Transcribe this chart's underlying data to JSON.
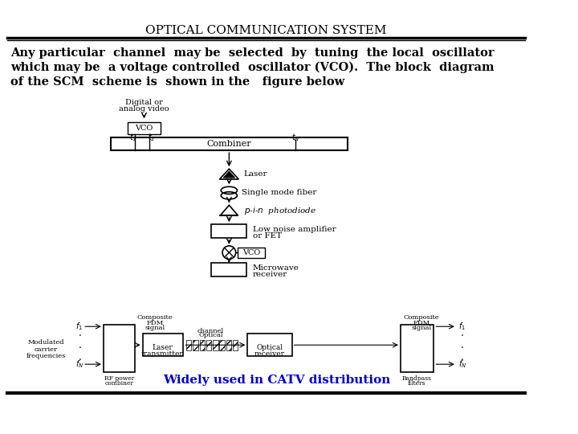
{
  "title": "OPTICAL COMMUNICATION SYSTEM",
  "line1": "Any particular  channel  may be  selected  by  tuning  the local  oscillator",
  "line2": "which may be  a voltage controlled  oscillator (VCO).  The block  diagram",
  "line3": "of the SCM  scheme is  shown in the   figure below",
  "catv_text": "Widely used in CATV distribution",
  "bg_color": "#ffffff",
  "title_color": "#000000",
  "catv_color": "#0000cc",
  "text_color": "#000000"
}
